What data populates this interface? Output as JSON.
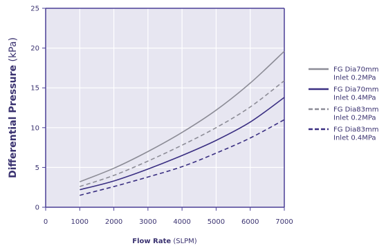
{
  "chart_data": {
    "type": "line",
    "xlabel_bold": "Flow Rate",
    "xlabel_unit": " (SLPM)",
    "ylabel_bold": "Differential Pressure",
    "ylabel_unit": " (kPa)",
    "xlim": [
      0,
      7000
    ],
    "ylim": [
      0,
      25
    ],
    "xticks": [
      0,
      1000,
      2000,
      3000,
      4000,
      5000,
      6000,
      7000
    ],
    "yticks": [
      0,
      5,
      10,
      15,
      20,
      25
    ],
    "grid": true,
    "legend_position": "right",
    "x": [
      1000,
      2000,
      3000,
      4000,
      5000,
      6000,
      7000
    ],
    "series": [
      {
        "name_line1": "FG Dia70mm",
        "name_line2": "Inlet 0.2MPa",
        "color": "#8c8c96",
        "dash": "solid",
        "values": [
          3.2,
          4.9,
          7.0,
          9.4,
          12.2,
          15.6,
          19.6
        ]
      },
      {
        "name_line1": "FG Dia70mm",
        "name_line2": "Inlet 0.4MPa",
        "color": "#3a2f82",
        "dash": "solid",
        "values": [
          2.2,
          3.3,
          4.8,
          6.5,
          8.4,
          10.7,
          13.8
        ]
      },
      {
        "name_line1": "FG Dia83mm",
        "name_line2": "Inlet 0.2MPa",
        "color": "#8c8c96",
        "dash": "dashed",
        "values": [
          2.6,
          4.0,
          5.8,
          7.8,
          10.0,
          12.6,
          15.9
        ]
      },
      {
        "name_line1": "FG Dia83mm",
        "name_line2": "Inlet 0.4MPa",
        "color": "#3a2f82",
        "dash": "dashed",
        "values": [
          1.5,
          2.6,
          3.8,
          5.1,
          6.8,
          8.7,
          11.0
        ]
      }
    ]
  },
  "colors": {
    "plot_background": "#e7e6f1",
    "axis": "#4a3f96",
    "grid": "#ffffff",
    "text": "#3a3270"
  }
}
